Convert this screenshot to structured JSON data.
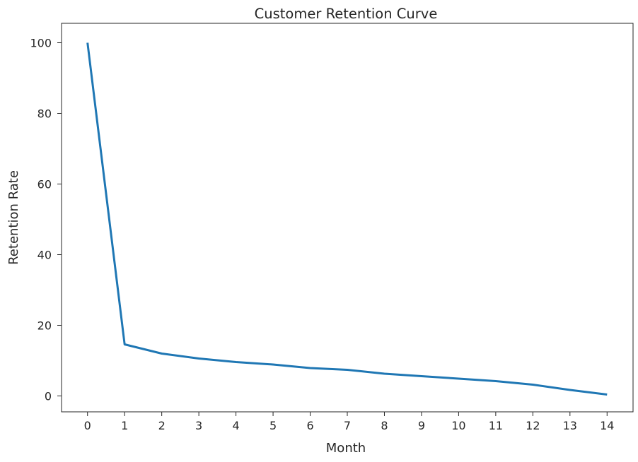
{
  "chart_data": {
    "type": "line",
    "title": "Customer Retention Curve",
    "xlabel": "Month",
    "ylabel": "Retention Rate",
    "x": [
      0,
      1,
      2,
      3,
      4,
      5,
      6,
      7,
      8,
      9,
      10,
      11,
      12,
      13,
      14
    ],
    "series": [
      {
        "values": [
          100,
          14.6,
          12.0,
          10.6,
          9.6,
          8.9,
          7.9,
          7.4,
          6.3,
          5.6,
          4.9,
          4.2,
          3.2,
          1.7,
          0.4
        ],
        "color": "#1f77b4"
      }
    ],
    "xticks": [
      "0",
      "1",
      "2",
      "3",
      "4",
      "5",
      "6",
      "7",
      "8",
      "9",
      "10",
      "11",
      "12",
      "13",
      "14"
    ],
    "yticks": [
      "0",
      "20",
      "40",
      "60",
      "80",
      "100"
    ],
    "xlim": [
      -0.7,
      14.7
    ],
    "ylim": [
      -4.5,
      105.5
    ],
    "grid": false,
    "legend": "none"
  }
}
